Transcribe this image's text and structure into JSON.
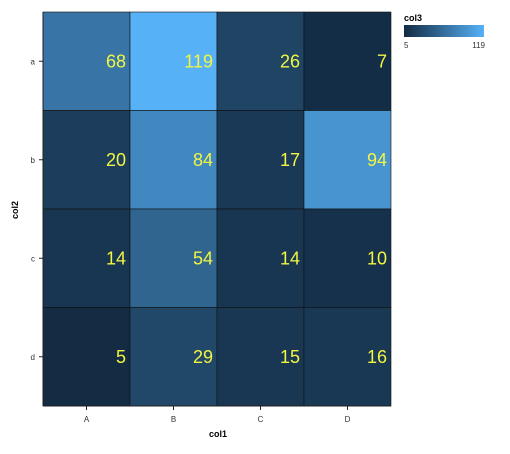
{
  "chart_data": {
    "type": "heatmap",
    "xlabel": "col1",
    "ylabel": "col2",
    "x_categories": [
      "A",
      "B",
      "C",
      "D"
    ],
    "y_categories": [
      "a",
      "b",
      "c",
      "d"
    ],
    "values": [
      [
        68,
        119,
        26,
        7
      ],
      [
        20,
        84,
        17,
        94
      ],
      [
        14,
        54,
        14,
        10
      ],
      [
        5,
        29,
        15,
        16
      ]
    ],
    "legend": {
      "title": "col3",
      "min": 5,
      "max": 119,
      "min_label": "5",
      "max_label": "119",
      "color_low": "#132b43",
      "color_high": "#56b1f7",
      "placement": "top-right"
    },
    "grid": false
  }
}
